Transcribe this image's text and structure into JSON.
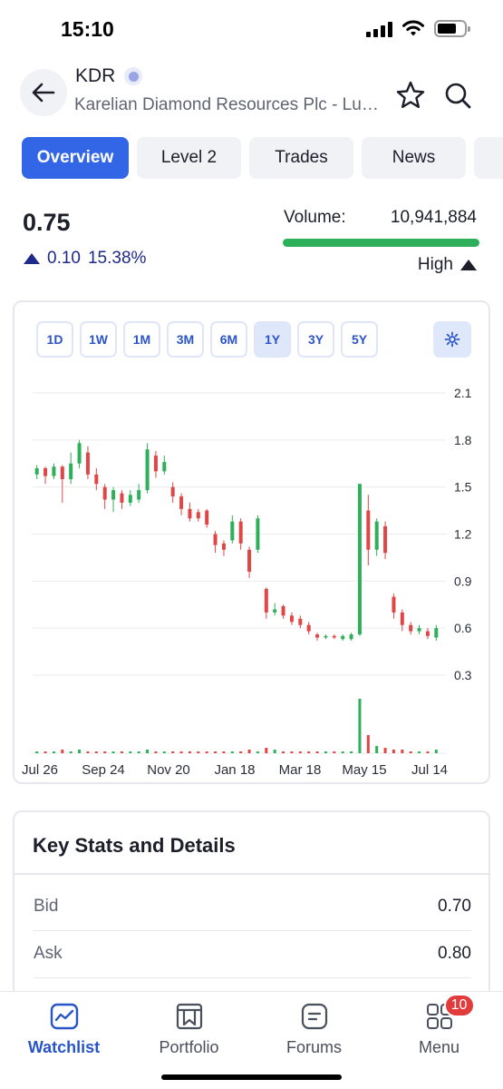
{
  "status_bar": {
    "time": "15:10"
  },
  "header": {
    "ticker": "KDR",
    "company_name": "Karelian Diamond Resources Plc - Lucapa Diamond"
  },
  "tabs": [
    {
      "label": "Overview",
      "active": true
    },
    {
      "label": "Level 2",
      "active": false
    },
    {
      "label": "Trades",
      "active": false
    },
    {
      "label": "News",
      "active": false
    },
    {
      "label": "",
      "active": false
    }
  ],
  "quote": {
    "price": "0.75",
    "change": "0.10",
    "change_pct": "15.38%",
    "volume_label": "Volume:",
    "volume_value": "10,941,884",
    "volume_level": "High"
  },
  "chart": {
    "ranges": [
      "1D",
      "1W",
      "1M",
      "3M",
      "6M",
      "1Y",
      "3Y",
      "5Y"
    ],
    "active_range": "1Y",
    "settings_icon": "gear-icon"
  },
  "chart_data": {
    "type": "candlestick",
    "x_tick_labels": [
      "Jul 26",
      "Sep 24",
      "Nov 20",
      "Jan 18",
      "Mar 18",
      "May 15",
      "Jul 14"
    ],
    "y_tick_labels": [
      "2.1",
      "1.8",
      "1.5",
      "1.2",
      "0.9",
      "0.6",
      "0.3"
    ],
    "ylim": [
      0.3,
      2.1
    ],
    "up_color": "#2eb05a",
    "down_color": "#e04646",
    "grid": "horizontal",
    "candles": [
      {
        "o": 1.58,
        "c": 1.62,
        "h": 1.64,
        "l": 1.55
      },
      {
        "o": 1.62,
        "c": 1.57,
        "h": 1.63,
        "l": 1.52
      },
      {
        "o": 1.57,
        "c": 1.63,
        "h": 1.65,
        "l": 1.55
      },
      {
        "o": 1.63,
        "c": 1.55,
        "h": 1.64,
        "l": 1.4
      },
      {
        "o": 1.55,
        "c": 1.65,
        "h": 1.72,
        "l": 1.52
      },
      {
        "o": 1.65,
        "c": 1.78,
        "h": 1.8,
        "l": 1.62
      },
      {
        "o": 1.72,
        "c": 1.58,
        "h": 1.76,
        "l": 1.55
      },
      {
        "o": 1.58,
        "c": 1.52,
        "h": 1.62,
        "l": 1.48
      },
      {
        "o": 1.5,
        "c": 1.42,
        "h": 1.52,
        "l": 1.36
      },
      {
        "o": 1.42,
        "c": 1.48,
        "h": 1.5,
        "l": 1.34
      },
      {
        "o": 1.46,
        "c": 1.4,
        "h": 1.48,
        "l": 1.36
      },
      {
        "o": 1.4,
        "c": 1.45,
        "h": 1.48,
        "l": 1.38
      },
      {
        "o": 1.42,
        "c": 1.48,
        "h": 1.52,
        "l": 1.4
      },
      {
        "o": 1.48,
        "c": 1.74,
        "h": 1.78,
        "l": 1.46
      },
      {
        "o": 1.7,
        "c": 1.6,
        "h": 1.73,
        "l": 1.56
      },
      {
        "o": 1.6,
        "c": 1.66,
        "h": 1.7,
        "l": 1.58
      },
      {
        "o": 1.5,
        "c": 1.44,
        "h": 1.53,
        "l": 1.4
      },
      {
        "o": 1.44,
        "c": 1.36,
        "h": 1.46,
        "l": 1.32
      },
      {
        "o": 1.36,
        "c": 1.3,
        "h": 1.4,
        "l": 1.28
      },
      {
        "o": 1.34,
        "c": 1.3,
        "h": 1.36,
        "l": 1.28
      },
      {
        "o": 1.35,
        "c": 1.26,
        "h": 1.36,
        "l": 1.24
      },
      {
        "o": 1.2,
        "c": 1.13,
        "h": 1.22,
        "l": 1.08
      },
      {
        "o": 1.14,
        "c": 1.1,
        "h": 1.16,
        "l": 1.06
      },
      {
        "o": 1.16,
        "c": 1.28,
        "h": 1.32,
        "l": 1.14
      },
      {
        "o": 1.28,
        "c": 1.14,
        "h": 1.3,
        "l": 1.1
      },
      {
        "o": 1.1,
        "c": 0.96,
        "h": 1.12,
        "l": 0.92
      },
      {
        "o": 1.1,
        "c": 1.3,
        "h": 1.32,
        "l": 1.08
      },
      {
        "o": 0.85,
        "c": 0.7,
        "h": 0.86,
        "l": 0.66
      },
      {
        "o": 0.7,
        "c": 0.72,
        "h": 0.76,
        "l": 0.68
      },
      {
        "o": 0.74,
        "c": 0.68,
        "h": 0.75,
        "l": 0.66
      },
      {
        "o": 0.68,
        "c": 0.64,
        "h": 0.7,
        "l": 0.62
      },
      {
        "o": 0.66,
        "c": 0.62,
        "h": 0.68,
        "l": 0.6
      },
      {
        "o": 0.62,
        "c": 0.58,
        "h": 0.64,
        "l": 0.56
      },
      {
        "o": 0.56,
        "c": 0.54,
        "h": 0.57,
        "l": 0.52
      },
      {
        "o": 0.54,
        "c": 0.55,
        "h": 0.56,
        "l": 0.53
      },
      {
        "o": 0.55,
        "c": 0.54,
        "h": 0.56,
        "l": 0.53
      },
      {
        "o": 0.53,
        "c": 0.55,
        "h": 0.56,
        "l": 0.52
      },
      {
        "o": 0.53,
        "c": 0.56,
        "h": 0.57,
        "l": 0.52
      },
      {
        "o": 0.56,
        "c": 1.52,
        "h": 1.52,
        "l": 0.55
      },
      {
        "o": 1.35,
        "c": 1.1,
        "h": 1.45,
        "l": 1.0
      },
      {
        "o": 1.1,
        "c": 1.28,
        "h": 1.3,
        "l": 1.06
      },
      {
        "o": 1.25,
        "c": 1.08,
        "h": 1.28,
        "l": 1.04
      },
      {
        "o": 0.8,
        "c": 0.7,
        "h": 0.82,
        "l": 0.66
      },
      {
        "o": 0.7,
        "c": 0.62,
        "h": 0.72,
        "l": 0.58
      },
      {
        "o": 0.62,
        "c": 0.58,
        "h": 0.64,
        "l": 0.56
      },
      {
        "o": 0.58,
        "c": 0.6,
        "h": 0.62,
        "l": 0.56
      },
      {
        "o": 0.58,
        "c": 0.55,
        "h": 0.6,
        "l": 0.53
      },
      {
        "o": 0.54,
        "c": 0.6,
        "h": 0.62,
        "l": 0.52
      }
    ],
    "volume": [
      1,
      1,
      1,
      2,
      1,
      2,
      1,
      1,
      1,
      1,
      1,
      1,
      1,
      2,
      1,
      1,
      1,
      1,
      1,
      1,
      1,
      1,
      1,
      1,
      1,
      2,
      1,
      3,
      2,
      1,
      1,
      1,
      1,
      1,
      1,
      1,
      1,
      1,
      30,
      10,
      4,
      3,
      2,
      2,
      1,
      1,
      1,
      2
    ]
  },
  "key_stats": {
    "title": "Key Stats and Details",
    "rows": [
      {
        "label": "Bid",
        "value": "0.70"
      },
      {
        "label": "Ask",
        "value": "0.80"
      }
    ]
  },
  "bottom_nav": {
    "items": [
      {
        "label": "Watchlist",
        "icon": "chart-icon",
        "active": true
      },
      {
        "label": "Portfolio",
        "icon": "bookmark-icon",
        "active": false
      },
      {
        "label": "Forums",
        "icon": "forum-icon",
        "active": false
      },
      {
        "label": "Menu",
        "icon": "menu-grid-icon",
        "active": false,
        "badge": "10"
      }
    ]
  }
}
